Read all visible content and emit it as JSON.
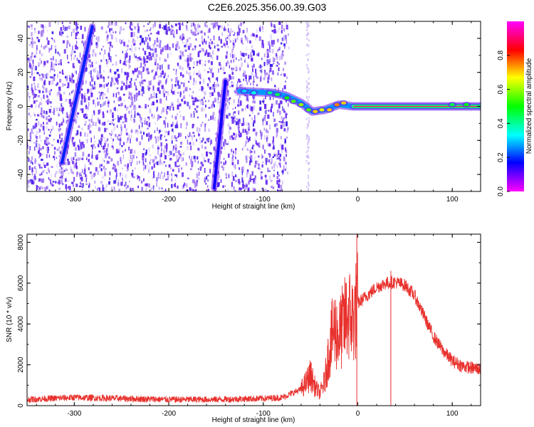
{
  "figure": {
    "title": "C2E6.2025.356.00.39.G03"
  },
  "chart_data": [
    {
      "type": "heatmap",
      "xlabel": "Height of straight line (km)",
      "ylabel": "Frequency (Hz)",
      "xlim": [
        -350,
        130
      ],
      "ylim": [
        -50,
        50
      ],
      "xticks": [
        -300,
        -200,
        -100,
        0,
        100
      ],
      "yticks": [
        -40,
        -20,
        0,
        20,
        40
      ],
      "colorbar": {
        "label": "Normalized spectral amplitude",
        "range": [
          0,
          1
        ],
        "ticks": [
          0.0,
          0.2,
          0.4,
          0.6,
          0.8
        ],
        "colormap": [
          "#ff00ff",
          "#0000ff",
          "#00ffff",
          "#00ff00",
          "#ffff00",
          "#ff0000",
          "#ff00ff"
        ]
      },
      "tracks": [
        {
          "x": [
            -313,
            -281
          ],
          "y": [
            -33,
            47
          ],
          "level": 0.3
        },
        {
          "x": [
            -152,
            -140
          ],
          "y": [
            -48,
            15
          ],
          "level": 0.2
        },
        {
          "x": [
            -125,
            -90,
            -75,
            -60,
            -48,
            -35,
            -20,
            -5,
            130
          ],
          "y": [
            9,
            8,
            6,
            2,
            -3,
            -2,
            1,
            0,
            0
          ],
          "level": 0.55
        },
        {
          "x": [
            -5,
            130
          ],
          "y": [
            0,
            0
          ],
          "level": 0.95
        }
      ],
      "noise_x_range": [
        -350,
        -80
      ]
    },
    {
      "type": "line",
      "xlabel": "Height of straight line (km)",
      "ylabel": "SNR (10 * v/v)",
      "xlim": [
        -350,
        130
      ],
      "ylim": [
        0,
        8400
      ],
      "xticks": [
        -300,
        -200,
        -100,
        0,
        100
      ],
      "yticks": [
        0,
        2000,
        4000,
        6000,
        8000
      ],
      "color": "#e8302c",
      "series": [
        {
          "x": [
            -350,
            -300,
            -250,
            -200,
            -150,
            -100,
            -80,
            -60,
            -55,
            -50,
            -45,
            -40,
            -35,
            -30,
            -25,
            -20,
            -15,
            -10,
            -5,
            0,
            10,
            20,
            30,
            40,
            50,
            60,
            70,
            80,
            90,
            100,
            110,
            120,
            130
          ],
          "values": [
            300,
            400,
            350,
            300,
            300,
            350,
            400,
            800,
            1100,
            1500,
            900,
            600,
            1200,
            2800,
            3800,
            3400,
            4000,
            4500,
            4200,
            5000,
            5400,
            5800,
            6000,
            6050,
            5900,
            5400,
            4400,
            3400,
            2700,
            2200,
            1950,
            1850,
            1800
          ]
        }
      ],
      "spikes": [
        {
          "x": -1,
          "value": 8400
        },
        {
          "x": 35,
          "value": 6600
        }
      ]
    }
  ]
}
